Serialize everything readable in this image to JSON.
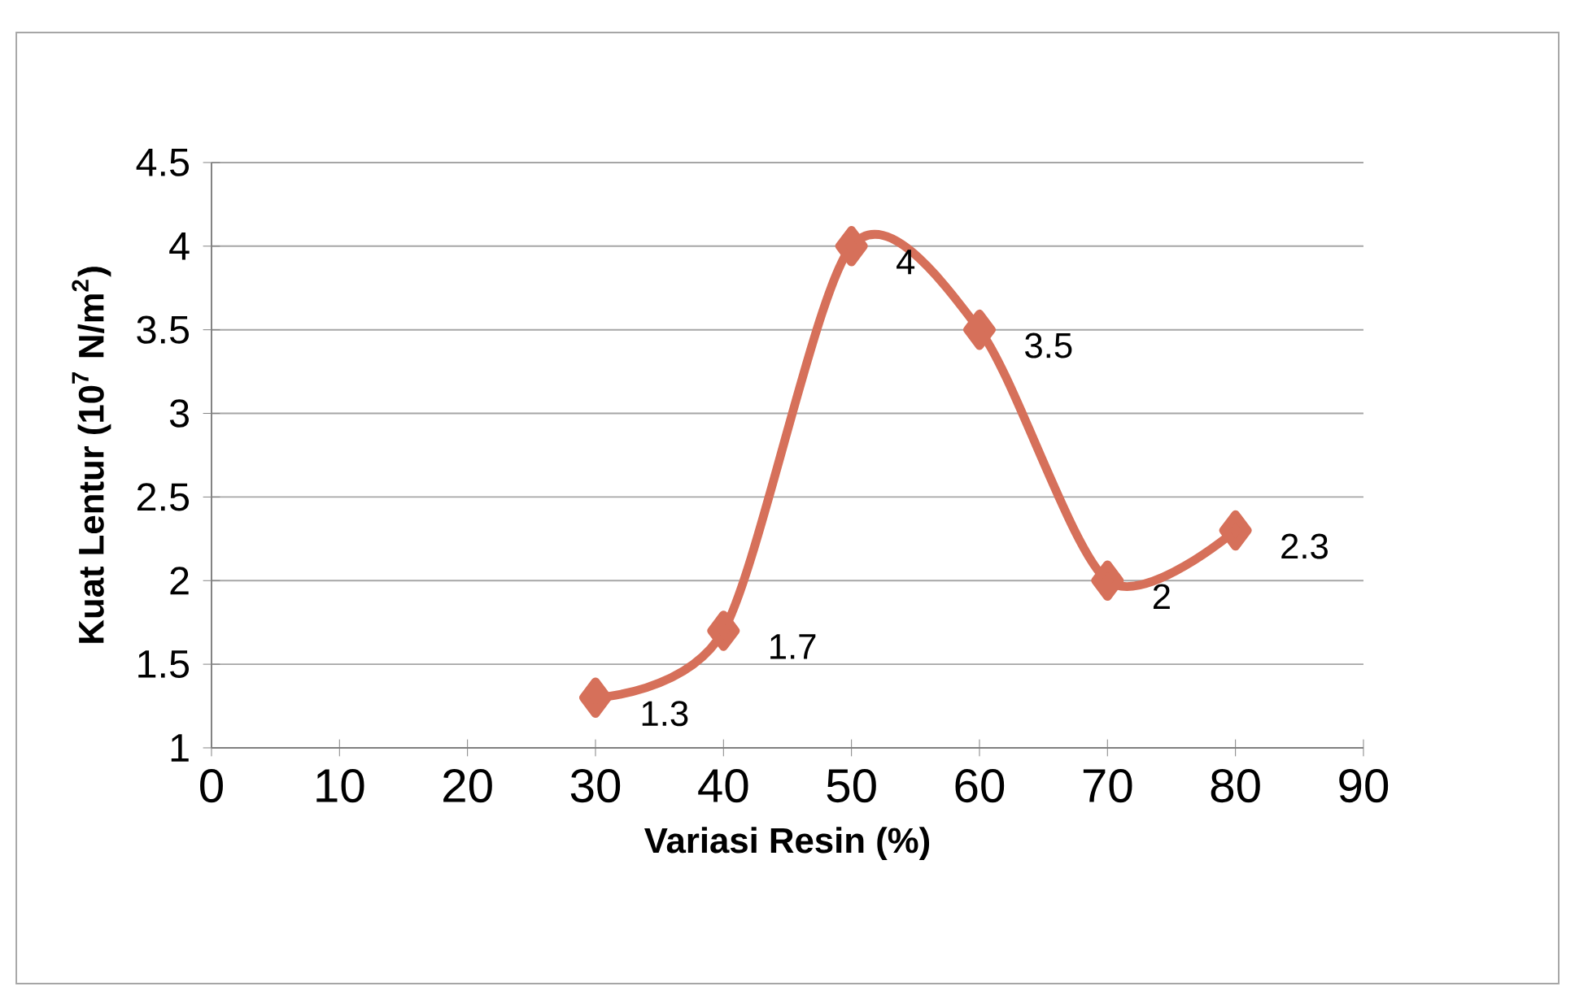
{
  "chart_data": {
    "type": "line",
    "xlabel": "Variasi Resin (%)",
    "ylabel": "Kuat Lentur (10$^{7}$ N/m$^{2}$)",
    "x": [
      30,
      40,
      50,
      60,
      70,
      80
    ],
    "values": [
      1.3,
      1.7,
      4,
      3.5,
      2,
      2.3
    ],
    "color": "#d6705a",
    "marker": "diamond",
    "line_style": "solid",
    "data_labels": true,
    "grid": "y",
    "xlim": [
      0,
      90
    ],
    "xticks": [
      0,
      10,
      20,
      30,
      40,
      50,
      60,
      70,
      80,
      90
    ],
    "ylim": [
      1,
      4.5
    ],
    "yticks": [
      1,
      1.5,
      2,
      2.5,
      3,
      3.5,
      4,
      4.5
    ]
  }
}
